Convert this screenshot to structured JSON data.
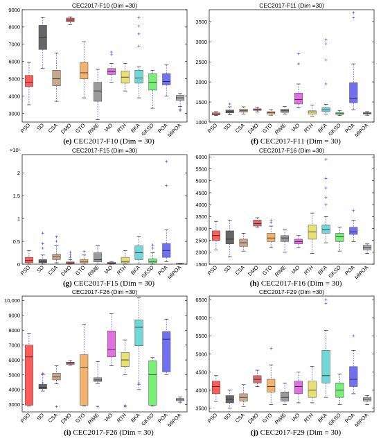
{
  "colors": {
    "PSO": "#ff5c5c",
    "SO": "#666666",
    "CSA": "#c9a98b",
    "DMO": "#d86a6a",
    "GTO": "#f2b36d",
    "RIME": "#9a9a9a",
    "IAO": "#e070e0",
    "RTH": "#e8e070",
    "BKA": "#70d8d8",
    "GKSO": "#78f078",
    "POA": "#7070f0",
    "MIPOA": "#aaaaaa",
    "whisker": "#4a4aff",
    "outlier": "#4a4aff",
    "median": "#222222",
    "axis": "#000000"
  },
  "chart_data": [
    {
      "type": "boxplot",
      "title": "CEC2017-F10 (Dim =30)",
      "caption_letter": "(e)",
      "caption_text": " CEC2017-F10 (Dim = 30)",
      "categories": [
        "PSO",
        "SO",
        "CSA",
        "DMO",
        "GTO",
        "RIME",
        "IAO",
        "RTH",
        "BKA",
        "GKSO",
        "POA",
        "MIPOA"
      ],
      "ylim": [
        2500,
        9000
      ],
      "yticks": [
        3000,
        4000,
        5000,
        6000,
        7000,
        8000,
        9000
      ],
      "ytick_labels": [
        "3000",
        "4000",
        "5000",
        "6000",
        "7000",
        "8000",
        "9000"
      ],
      "exponent_label": "",
      "boxes": [
        {
          "min": 3500,
          "q1": 4550,
          "median": 4800,
          "q3": 5200,
          "max": 5950,
          "outliers": []
        },
        {
          "min": 5600,
          "q1": 6700,
          "median": 7400,
          "q3": 8100,
          "max": 8550,
          "outliers": []
        },
        {
          "min": 3700,
          "q1": 4600,
          "median": 5000,
          "q3": 5500,
          "max": 6500,
          "outliers": []
        },
        {
          "min": 8150,
          "q1": 8300,
          "median": 8400,
          "q3": 8520,
          "max": 8580,
          "outliers": []
        },
        {
          "min": 3900,
          "q1": 5000,
          "median": 5350,
          "q3": 5950,
          "max": 7150,
          "outliers": []
        },
        {
          "min": 2650,
          "q1": 3700,
          "median": 4300,
          "q3": 4800,
          "max": 5550,
          "outliers": []
        },
        {
          "min": 4800,
          "q1": 5250,
          "median": 5420,
          "q3": 5600,
          "max": 5900,
          "outliers": [
            6400,
            6550
          ]
        },
        {
          "min": 4300,
          "q1": 4750,
          "median": 5100,
          "q3": 5450,
          "max": 5900,
          "outliers": []
        },
        {
          "min": 3900,
          "q1": 4750,
          "median": 5050,
          "q3": 5500,
          "max": 5700,
          "outliers": [
            6900,
            7600,
            8050,
            8550
          ]
        },
        {
          "min": 3300,
          "q1": 4350,
          "median": 4800,
          "q3": 5300,
          "max": 5500,
          "outliers": []
        },
        {
          "min": 4000,
          "q1": 4650,
          "median": 4850,
          "q3": 5300,
          "max": 5800,
          "outliers": []
        },
        {
          "min": 3400,
          "q1": 3750,
          "median": 3900,
          "q3": 4050,
          "max": 4150,
          "outliers": [
            3250,
            3150
          ]
        }
      ]
    },
    {
      "type": "boxplot",
      "title": "CEC2017-F11 (Dim =30)",
      "caption_letter": "(f)",
      "caption_text": " CEC2017-F11 (Dim = 30)",
      "categories": [
        "PSO",
        "SO",
        "CSA",
        "DMO",
        "GTO",
        "RIME",
        "IAO",
        "RTH",
        "BKA",
        "GKSO",
        "POA",
        "MIPOA"
      ],
      "ylim": [
        1000,
        3800
      ],
      "yticks": [
        1000,
        1500,
        2000,
        2500,
        3000,
        3500
      ],
      "ytick_labels": [
        "1000",
        "1500",
        "2000",
        "2500",
        "3000",
        "3500"
      ],
      "exponent_label": "",
      "boxes": [
        {
          "min": 1160,
          "q1": 1180,
          "median": 1200,
          "q3": 1230,
          "max": 1260,
          "outliers": []
        },
        {
          "min": 1180,
          "q1": 1230,
          "median": 1260,
          "q3": 1300,
          "max": 1380,
          "outliers": [
            1450
          ]
        },
        {
          "min": 1200,
          "q1": 1250,
          "median": 1280,
          "q3": 1320,
          "max": 1380,
          "outliers": []
        },
        {
          "min": 1250,
          "q1": 1290,
          "median": 1310,
          "q3": 1330,
          "max": 1360,
          "outliers": []
        },
        {
          "min": 1170,
          "q1": 1200,
          "median": 1230,
          "q3": 1260,
          "max": 1310,
          "outliers": []
        },
        {
          "min": 1200,
          "q1": 1240,
          "median": 1280,
          "q3": 1320,
          "max": 1390,
          "outliers": []
        },
        {
          "min": 1350,
          "q1": 1450,
          "median": 1560,
          "q3": 1720,
          "max": 1950,
          "outliers": [
            2450,
            2700
          ]
        },
        {
          "min": 1150,
          "q1": 1200,
          "median": 1250,
          "q3": 1280,
          "max": 1420,
          "outliers": []
        },
        {
          "min": 1200,
          "q1": 1260,
          "median": 1300,
          "q3": 1360,
          "max": 1440,
          "outliers": [
            1950,
            2550,
            2950,
            3050
          ]
        },
        {
          "min": 1160,
          "q1": 1190,
          "median": 1210,
          "q3": 1240,
          "max": 1290,
          "outliers": []
        },
        {
          "min": 1300,
          "q1": 1480,
          "median": 1580,
          "q3": 1980,
          "max": 2450,
          "outliers": [
            3600,
            3720
          ]
        },
        {
          "min": 1170,
          "q1": 1200,
          "median": 1220,
          "q3": 1240,
          "max": 1260,
          "outliers": []
        }
      ]
    },
    {
      "type": "boxplot",
      "title": "CEC2017-F15 (Dim =30)",
      "caption_letter": "(g)",
      "caption_text": " CEC2017-F15 (Dim = 30)",
      "categories": [
        "PSO",
        "SO",
        "CSA",
        "DMO",
        "GTO",
        "RIME",
        "IAO",
        "RTH",
        "BKA",
        "GKSO",
        "POA",
        "MIPOA"
      ],
      "ylim": [
        0,
        2.4
      ],
      "yticks": [
        0,
        0.5,
        1,
        1.5,
        2
      ],
      "ytick_labels": [
        "0",
        "0.5",
        "1",
        "1.5",
        "2"
      ],
      "exponent_label": "×10⁵",
      "boxes": [
        {
          "min": 0.0,
          "q1": 0.03,
          "median": 0.08,
          "q3": 0.15,
          "max": 0.3,
          "outliers": []
        },
        {
          "min": 0.0,
          "q1": 0.03,
          "median": 0.06,
          "q3": 0.1,
          "max": 0.2,
          "outliers": [
            0.35,
            0.45,
            0.68
          ]
        },
        {
          "min": 0.03,
          "q1": 0.1,
          "median": 0.16,
          "q3": 0.22,
          "max": 0.4,
          "outliers": [
            0.5,
            0.6
          ]
        },
        {
          "min": 0.0,
          "q1": 0.01,
          "median": 0.03,
          "q3": 0.05,
          "max": 0.1,
          "outliers": [
            0.15,
            0.2,
            0.26
          ]
        },
        {
          "min": 0.0,
          "q1": 0.03,
          "median": 0.06,
          "q3": 0.1,
          "max": 0.2,
          "outliers": [
            0.28
          ]
        },
        {
          "min": 0.0,
          "q1": 0.05,
          "median": 0.1,
          "q3": 0.25,
          "max": 0.4,
          "outliers": []
        },
        {
          "min": 0.0,
          "q1": 0.01,
          "median": 0.02,
          "q3": 0.04,
          "max": 0.06,
          "outliers": []
        },
        {
          "min": 0.0,
          "q1": 0.03,
          "median": 0.06,
          "q3": 0.15,
          "max": 0.3,
          "outliers": []
        },
        {
          "min": 0.0,
          "q1": 0.1,
          "median": 0.25,
          "q3": 0.4,
          "max": 0.6,
          "outliers": []
        },
        {
          "min": 0.0,
          "q1": 0.03,
          "median": 0.06,
          "q3": 0.12,
          "max": 0.25,
          "outliers": [
            0.35,
            0.42
          ]
        },
        {
          "min": 0.05,
          "q1": 0.15,
          "median": 0.3,
          "q3": 0.45,
          "max": 0.75,
          "outliers": [
            1.72,
            2.25
          ]
        },
        {
          "min": 0.0,
          "q1": 0.005,
          "median": 0.01,
          "q3": 0.015,
          "max": 0.02,
          "outliers": []
        }
      ]
    },
    {
      "type": "boxplot",
      "title": "CEC2017-F16 (Dim =30)",
      "caption_letter": "(h)",
      "caption_text": " CEC2017-F16 (Dim = 30)",
      "categories": [
        "PSO",
        "SO",
        "CSA",
        "DMO",
        "GTO",
        "RIME",
        "IAO",
        "RTH",
        "BKA",
        "GKSO",
        "POA",
        "MIPOA"
      ],
      "ylim": [
        1500,
        6100
      ],
      "yticks": [
        1500,
        2000,
        2500,
        3000,
        3500,
        4000,
        4500,
        5000,
        5500,
        6000
      ],
      "ytick_labels": [
        "1500",
        "2000",
        "2500",
        "3000",
        "3500",
        "4000",
        "4500",
        "5000",
        "5500",
        "6000"
      ],
      "exponent_label": "",
      "boxes": [
        {
          "min": 2100,
          "q1": 2500,
          "median": 2700,
          "q3": 2900,
          "max": 3300,
          "outliers": []
        },
        {
          "min": 1800,
          "q1": 2350,
          "median": 2550,
          "q3": 2900,
          "max": 3350,
          "outliers": []
        },
        {
          "min": 2050,
          "q1": 2250,
          "median": 2400,
          "q3": 2550,
          "max": 2800,
          "outliers": []
        },
        {
          "min": 3050,
          "q1": 3100,
          "median": 3200,
          "q3": 3350,
          "max": 3450,
          "outliers": []
        },
        {
          "min": 2200,
          "q1": 2450,
          "median": 2600,
          "q3": 2800,
          "max": 3100,
          "outliers": [
            3250,
            3350
          ]
        },
        {
          "min": 2000,
          "q1": 2450,
          "median": 2600,
          "q3": 2700,
          "max": 2950,
          "outliers": []
        },
        {
          "min": 2200,
          "q1": 2350,
          "median": 2450,
          "q3": 2550,
          "max": 2700,
          "outliers": []
        },
        {
          "min": 1950,
          "q1": 2550,
          "median": 2850,
          "q3": 3150,
          "max": 3650,
          "outliers": []
        },
        {
          "min": 2400,
          "q1": 2800,
          "median": 2950,
          "q3": 3150,
          "max": 3500,
          "outliers": [
            4000,
            4300,
            4700,
            5100,
            5900
          ]
        },
        {
          "min": 2050,
          "q1": 2450,
          "median": 2650,
          "q3": 2800,
          "max": 3050,
          "outliers": []
        },
        {
          "min": 2450,
          "q1": 2750,
          "median": 2850,
          "q3": 3050,
          "max": 3350,
          "outliers": [
            3750
          ]
        },
        {
          "min": 1950,
          "q1": 2100,
          "median": 2200,
          "q3": 2300,
          "max": 2350,
          "outliers": []
        }
      ]
    },
    {
      "type": "boxplot",
      "title": "CEC2017-F26 (Dim =30)",
      "caption_letter": "(i)",
      "caption_text": " CEC2017-F26 (Dim = 30)",
      "categories": [
        "PSO",
        "SO",
        "CSA",
        "DMO",
        "GTO",
        "RIME",
        "IAO",
        "RTH",
        "BKA",
        "GKSO",
        "POA",
        "MIPOA"
      ],
      "ylim": [
        2500,
        10300
      ],
      "yticks": [
        3000,
        4000,
        5000,
        6000,
        7000,
        8000,
        9000,
        10000
      ],
      "ytick_labels": [
        "3000",
        "4000",
        "5000",
        "6000",
        "7000",
        "8000",
        "9000",
        "10,000"
      ],
      "exponent_label": "",
      "boxes": [
        {
          "min": 2900,
          "q1": 2950,
          "median": 6200,
          "q3": 7000,
          "max": 7800,
          "outliers": []
        },
        {
          "min": 3900,
          "q1": 4050,
          "median": 4150,
          "q3": 4350,
          "max": 5000,
          "outliers": [
            4450,
            5100
          ]
        },
        {
          "min": 4400,
          "q1": 4650,
          "median": 4850,
          "q3": 5100,
          "max": 5600,
          "outliers": [
            2850
          ]
        },
        {
          "min": 5650,
          "q1": 5700,
          "median": 5800,
          "q3": 5850,
          "max": 5950,
          "outliers": []
        },
        {
          "min": 2900,
          "q1": 2950,
          "median": 5500,
          "q3": 6350,
          "max": 8400,
          "outliers": []
        },
        {
          "min": 4400,
          "q1": 4550,
          "median": 4650,
          "q3": 4800,
          "max": 5900,
          "outliers": [
            2850
          ]
        },
        {
          "min": 5600,
          "q1": 6200,
          "median": 6700,
          "q3": 7950,
          "max": 9100,
          "outliers": []
        },
        {
          "min": 5000,
          "q1": 5550,
          "median": 6000,
          "q3": 6500,
          "max": 7350,
          "outliers": [
            2850,
            2950
          ]
        },
        {
          "min": 4000,
          "q1": 6950,
          "median": 8200,
          "q3": 8700,
          "max": 10200,
          "outliers": [
            4450,
            4350
          ]
        },
        {
          "min": 2900,
          "q1": 2950,
          "median": 5000,
          "q3": 5950,
          "max": 6150,
          "outliers": []
        },
        {
          "min": 5000,
          "q1": 5200,
          "median": 7400,
          "q3": 7900,
          "max": 8750,
          "outliers": []
        },
        {
          "min": 3150,
          "q1": 3250,
          "median": 3350,
          "q3": 3400,
          "max": 3500,
          "outliers": [
            3150
          ]
        }
      ]
    },
    {
      "type": "boxplot",
      "title": "CEC2017-F29 (Dim =30)",
      "caption_letter": "(j)",
      "caption_text": " CEC2017-F29 (Dim = 30)",
      "categories": [
        "PSO",
        "SO",
        "CSA",
        "DMO",
        "GTO",
        "RIME",
        "IAO",
        "RTH",
        "BKA",
        "GKSO",
        "POA",
        "MIPOA"
      ],
      "ylim": [
        3400,
        6600
      ],
      "yticks": [
        3500,
        4000,
        4500,
        5000,
        5500,
        6000,
        6500
      ],
      "ytick_labels": [
        "3500",
        "4000",
        "4500",
        "5000",
        "5500",
        "6000",
        "6500"
      ],
      "exponent_label": "",
      "boxes": [
        {
          "min": 3700,
          "q1": 3900,
          "median": 4100,
          "q3": 4250,
          "max": 4400,
          "outliers": []
        },
        {
          "min": 3500,
          "q1": 3650,
          "median": 3750,
          "q3": 3850,
          "max": 4000,
          "outliers": []
        },
        {
          "min": 3550,
          "q1": 3700,
          "median": 3800,
          "q3": 3900,
          "max": 4150,
          "outliers": []
        },
        {
          "min": 4100,
          "q1": 4200,
          "median": 4300,
          "q3": 4400,
          "max": 4550,
          "outliers": []
        },
        {
          "min": 3600,
          "q1": 3950,
          "median": 4100,
          "q3": 4300,
          "max": 4700,
          "outliers": [
            5150
          ]
        },
        {
          "min": 3600,
          "q1": 3700,
          "median": 3800,
          "q3": 3950,
          "max": 4200,
          "outliers": []
        },
        {
          "min": 3650,
          "q1": 3900,
          "median": 4100,
          "q3": 4250,
          "max": 4500,
          "outliers": []
        },
        {
          "min": 3650,
          "q1": 3800,
          "median": 4000,
          "q3": 4250,
          "max": 4650,
          "outliers": []
        },
        {
          "min": 3800,
          "q1": 4200,
          "median": 4400,
          "q3": 5100,
          "max": 5650,
          "outliers": [
            6400,
            6500
          ]
        },
        {
          "min": 3600,
          "q1": 3800,
          "median": 4000,
          "q3": 4200,
          "max": 4450,
          "outliers": []
        },
        {
          "min": 3900,
          "q1": 4100,
          "median": 4300,
          "q3": 4650,
          "max": 5100,
          "outliers": [
            5500
          ]
        },
        {
          "min": 3600,
          "q1": 3700,
          "median": 3750,
          "q3": 3800,
          "max": 3850,
          "outliers": []
        }
      ]
    }
  ]
}
